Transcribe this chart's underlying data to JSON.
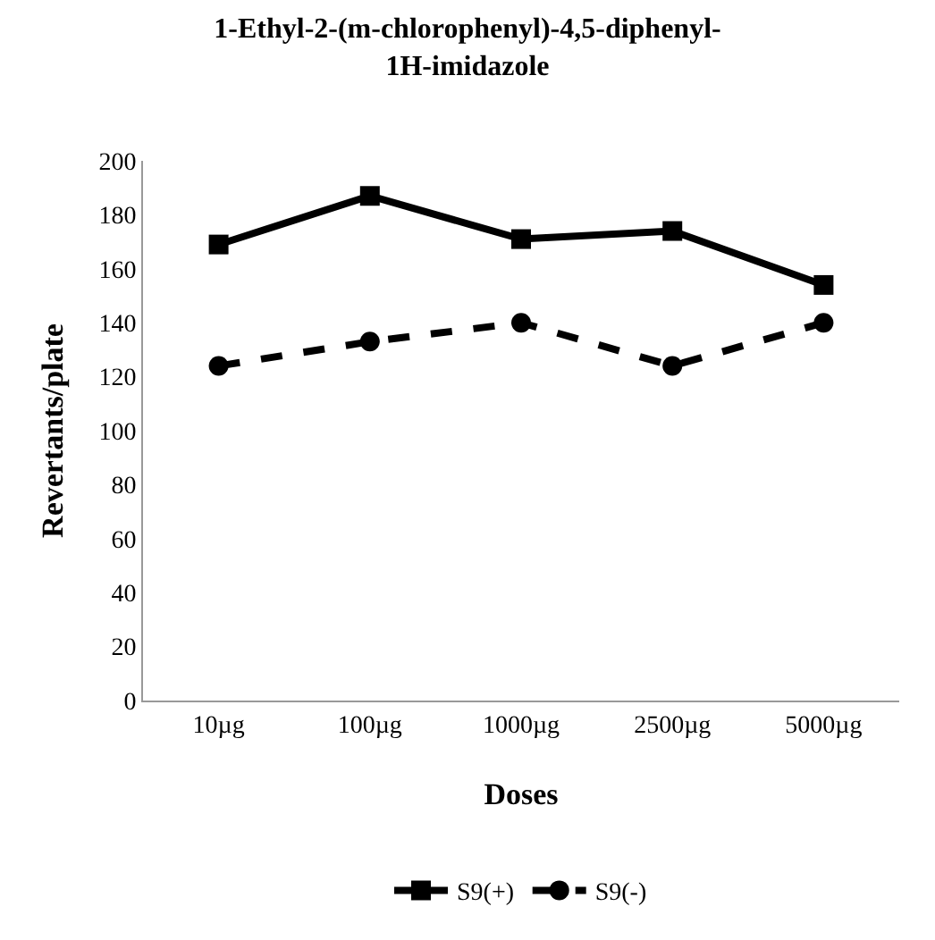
{
  "chart_data": {
    "type": "line",
    "title": "1-Ethyl-2-(m-chlorophenyl)-4,5-diphenyl-\n1H-imidazole",
    "xlabel": "Doses",
    "ylabel": "Revertants/plate",
    "categories": [
      "10µg",
      "100µg",
      "1000µg",
      "2500µg",
      "5000µg"
    ],
    "series": [
      {
        "name": "S9(+)",
        "color": "#000000",
        "values": [
          169,
          187,
          171,
          174,
          154
        ],
        "marker": "square",
        "line_style": "solid"
      },
      {
        "name": "S9(-)",
        "color": "#000000",
        "values": [
          124,
          133,
          140,
          124,
          140
        ],
        "marker": "circle",
        "line_style": "dashed"
      }
    ],
    "ylim": [
      0,
      200
    ],
    "yticks": [
      0,
      20,
      40,
      60,
      80,
      100,
      120,
      140,
      160,
      180,
      200
    ],
    "legend": "bottom"
  }
}
